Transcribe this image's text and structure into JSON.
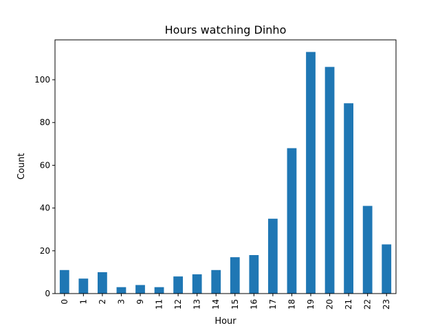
{
  "chart_data": {
    "type": "bar",
    "title": "Hours watching Dinho",
    "xlabel": "Hour",
    "ylabel": "Count",
    "categories": [
      "0",
      "1",
      "2",
      "3",
      "9",
      "11",
      "12",
      "13",
      "14",
      "15",
      "16",
      "17",
      "18",
      "19",
      "20",
      "21",
      "22",
      "23"
    ],
    "values": [
      11,
      7,
      10,
      3,
      4,
      3,
      8,
      9,
      11,
      17,
      18,
      35,
      68,
      113,
      106,
      89,
      41,
      23
    ],
    "yticks": [
      0,
      20,
      40,
      60,
      80,
      100
    ],
    "ylim": [
      0,
      118.65
    ],
    "bar_color": "#1f77b4",
    "grid": false,
    "x_tick_rotation": "vertical"
  }
}
